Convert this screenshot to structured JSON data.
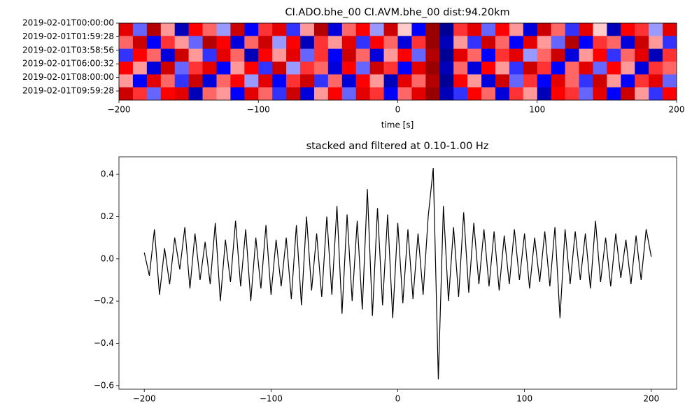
{
  "chart_data": [
    {
      "type": "heatmap",
      "title": "CI.ADO.bhe_00 CI.AVM.bhe_00  dist:94.20km",
      "x_label": "time [s]",
      "colormap": "seismic",
      "clim": [
        -1,
        1
      ],
      "xlim": [
        -200,
        200
      ],
      "xticks": [
        {
          "value": -200,
          "label": "−200"
        },
        {
          "value": -100,
          "label": "−100"
        },
        0,
        100,
        200
      ],
      "ylim": [
        0,
        5.67
      ],
      "yticks": [
        {
          "value": 0,
          "label": "2019-02-01T00:00:00"
        },
        {
          "value": 1,
          "label": "2019-02-01T01:59:28"
        },
        {
          "value": 2,
          "label": "2019-02-01T03:58:56"
        },
        {
          "value": 3,
          "label": "2019-02-01T06:00:32"
        },
        {
          "value": 4,
          "label": "2019-02-01T08:00:00"
        },
        {
          "value": 5,
          "label": "2019-02-01T09:59:28"
        }
      ],
      "z": [
        [
          0.6,
          -0.3,
          0.8,
          0.2,
          -0.7,
          0.5,
          0.3,
          -0.2,
          0.7,
          -0.5,
          0.4,
          0.6,
          -0.4,
          0.2,
          0.8,
          -0.6,
          0.3,
          0.5,
          -0.2,
          0.7,
          0.1,
          -0.5,
          0.9,
          -0.8,
          0.4,
          0.6,
          -0.3,
          0.5,
          0.2,
          -0.6,
          0.7,
          0.3,
          -0.4,
          0.6,
          0.1,
          -0.7,
          0.5,
          0.4,
          -0.2,
          0.6
        ],
        [
          0.3,
          0.7,
          -0.5,
          0.4,
          0.2,
          -0.3,
          0.8,
          0.5,
          -0.6,
          0.3,
          0.7,
          -0.2,
          0.5,
          -0.7,
          0.4,
          0.2,
          0.6,
          -0.4,
          0.5,
          0.3,
          -0.6,
          0.4,
          0.9,
          -0.7,
          0.2,
          -0.4,
          0.7,
          0.3,
          -0.5,
          0.6,
          0.2,
          -0.3,
          0.8,
          -0.5,
          0.4,
          0.3,
          -0.6,
          0.7,
          0.2,
          -0.4
        ],
        [
          -0.4,
          0.5,
          0.3,
          -0.6,
          0.7,
          0.2,
          -0.4,
          0.6,
          0.3,
          -0.7,
          0.5,
          0.2,
          0.6,
          -0.3,
          0.4,
          -0.5,
          0.7,
          0.3,
          -0.6,
          0.2,
          0.5,
          -0.3,
          0.8,
          -0.8,
          0.6,
          0.3,
          -0.5,
          0.4,
          0.6,
          -0.2,
          0.3,
          0.7,
          -0.6,
          0.2,
          0.5,
          -0.4,
          0.3,
          0.6,
          -0.7,
          0.4
        ],
        [
          0.5,
          0.2,
          -0.6,
          0.7,
          -0.3,
          0.4,
          0.6,
          -0.5,
          0.2,
          0.5,
          -0.4,
          0.7,
          -0.2,
          0.4,
          0.3,
          -0.6,
          0.5,
          -0.3,
          0.7,
          0.4,
          -0.5,
          0.6,
          0.9,
          -0.7,
          0.3,
          -0.6,
          0.5,
          0.2,
          -0.4,
          0.7,
          0.4,
          -0.5,
          0.3,
          0.6,
          -0.3,
          0.5,
          0.2,
          -0.6,
          0.4,
          0.3
        ],
        [
          0.2,
          -0.5,
          0.6,
          0.3,
          -0.4,
          0.7,
          -0.6,
          0.3,
          0.5,
          -0.2,
          0.6,
          -0.5,
          0.4,
          0.7,
          -0.4,
          0.3,
          -0.6,
          0.5,
          0.2,
          -0.7,
          0.6,
          0.3,
          0.8,
          -0.8,
          0.5,
          0.2,
          -0.6,
          0.7,
          -0.3,
          0.4,
          -0.5,
          0.6,
          0.3,
          -0.4,
          0.7,
          0.2,
          -0.5,
          0.4,
          0.6,
          -0.3
        ],
        [
          0.7,
          0.4,
          -0.3,
          0.5,
          0.6,
          -0.7,
          0.3,
          0.2,
          -0.5,
          0.6,
          0.3,
          -0.4,
          0.7,
          -0.6,
          0.2,
          0.5,
          -0.3,
          0.6,
          0.4,
          -0.5,
          0.3,
          0.6,
          0.9,
          -0.7,
          -0.4,
          0.5,
          0.3,
          -0.6,
          0.4,
          0.2,
          -0.7,
          0.5,
          0.4,
          -0.3,
          0.6,
          -0.5,
          0.7,
          0.2,
          -0.4,
          0.5
        ]
      ]
    },
    {
      "type": "line",
      "title": "stacked and filtered at 0.10-1.00 Hz",
      "color": "#000000",
      "xlim": [
        -220,
        220
      ],
      "xticks": [
        {
          "value": -200,
          "label": "−200"
        },
        {
          "value": -100,
          "label": "−100"
        },
        0,
        100,
        200
      ],
      "ylim": [
        -0.617,
        0.483
      ],
      "yticks": [
        {
          "value": -0.6,
          "label": "−0.6"
        },
        {
          "value": -0.4,
          "label": "−0.4"
        },
        {
          "value": -0.2,
          "label": "−0.2"
        },
        {
          "value": 0,
          "label": "0.0"
        },
        {
          "value": 0.2,
          "label": "0.2"
        },
        {
          "value": 0.4,
          "label": "0.4"
        }
      ],
      "x": [
        -200,
        -196,
        -192,
        -188,
        -184,
        -180,
        -176,
        -172,
        -168,
        -164,
        -160,
        -156,
        -152,
        -148,
        -144,
        -140,
        -136,
        -132,
        -128,
        -124,
        -120,
        -116,
        -112,
        -108,
        -104,
        -100,
        -96,
        -92,
        -88,
        -84,
        -80,
        -76,
        -72,
        -68,
        -64,
        -60,
        -56,
        -52,
        -48,
        -44,
        -40,
        -36,
        -32,
        -28,
        -24,
        -20,
        -16,
        -12,
        -8,
        -4,
        0,
        4,
        8,
        12,
        16,
        20,
        24,
        28,
        32,
        36,
        40,
        44,
        48,
        52,
        56,
        60,
        64,
        68,
        72,
        76,
        80,
        84,
        88,
        92,
        96,
        100,
        104,
        108,
        112,
        116,
        120,
        124,
        128,
        132,
        136,
        140,
        144,
        148,
        152,
        156,
        160,
        164,
        168,
        172,
        176,
        180,
        184,
        188,
        192,
        196,
        200
      ],
      "values": [
        0.03,
        -0.08,
        0.14,
        -0.17,
        0.05,
        -0.12,
        0.1,
        -0.05,
        0.15,
        -0.14,
        0.12,
        -0.1,
        0.08,
        -0.12,
        0.17,
        -0.2,
        0.09,
        -0.11,
        0.18,
        -0.13,
        0.14,
        -0.2,
        0.1,
        -0.14,
        0.16,
        -0.17,
        0.09,
        -0.13,
        0.1,
        -0.19,
        0.16,
        -0.22,
        0.2,
        -0.15,
        0.12,
        -0.18,
        0.2,
        -0.17,
        0.25,
        -0.26,
        0.21,
        -0.2,
        0.18,
        -0.24,
        0.33,
        -0.27,
        0.24,
        -0.22,
        0.21,
        -0.28,
        0.17,
        -0.21,
        0.14,
        -0.19,
        0.12,
        -0.17,
        0.2,
        0.43,
        -0.57,
        0.25,
        -0.2,
        0.15,
        -0.18,
        0.22,
        -0.16,
        0.17,
        -0.12,
        0.14,
        -0.13,
        0.13,
        -0.15,
        0.11,
        -0.12,
        0.14,
        -0.1,
        0.12,
        -0.14,
        0.1,
        -0.11,
        0.13,
        -0.13,
        0.15,
        -0.28,
        0.14,
        -0.12,
        0.13,
        -0.1,
        0.12,
        -0.14,
        0.18,
        -0.11,
        0.1,
        -0.13,
        0.12,
        -0.09,
        0.09,
        -0.12,
        0.11,
        -0.1,
        0.14,
        0.01
      ]
    }
  ]
}
